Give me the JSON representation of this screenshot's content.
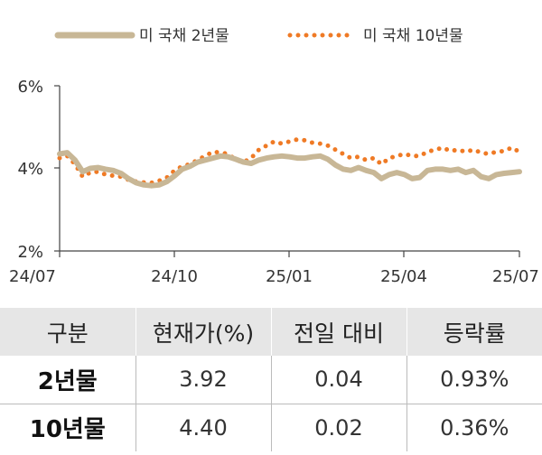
{
  "chart_data": {
    "type": "line",
    "xlabel": "",
    "ylabel": "",
    "x_tick_labels": [
      "24/07",
      "24/10",
      "25/01",
      "25/04",
      "25/07"
    ],
    "y_tick_labels": [
      "2%",
      "4%",
      "6%"
    ],
    "ylim": [
      2,
      6
    ],
    "grid": false,
    "legend_position": "top",
    "series": [
      {
        "name": "미 국채 2년물",
        "style": "solid-thick",
        "color": "#c8b796",
        "values": [
          4.35,
          4.38,
          4.2,
          3.92,
          4.0,
          4.02,
          3.98,
          3.95,
          3.88,
          3.75,
          3.65,
          3.6,
          3.58,
          3.6,
          3.68,
          3.82,
          3.98,
          4.05,
          4.15,
          4.2,
          4.25,
          4.3,
          4.28,
          4.22,
          4.15,
          4.12,
          4.2,
          4.25,
          4.28,
          4.3,
          4.28,
          4.25,
          4.25,
          4.28,
          4.3,
          4.22,
          4.08,
          3.98,
          3.95,
          4.02,
          3.95,
          3.9,
          3.75,
          3.85,
          3.9,
          3.85,
          3.75,
          3.78,
          3.95,
          3.98,
          3.98,
          3.95,
          3.98,
          3.9,
          3.95,
          3.8,
          3.75,
          3.85,
          3.88,
          3.9,
          3.92
        ]
      },
      {
        "name": "미 국채 10년물",
        "style": "dotted",
        "color": "#ef7a25",
        "values": [
          4.25,
          4.3,
          4.1,
          3.8,
          3.9,
          3.92,
          3.85,
          3.82,
          3.8,
          3.72,
          3.68,
          3.66,
          3.65,
          3.7,
          3.78,
          3.95,
          4.05,
          4.1,
          4.2,
          4.3,
          4.4,
          4.38,
          4.35,
          4.2,
          4.15,
          4.25,
          4.45,
          4.55,
          4.65,
          4.6,
          4.65,
          4.7,
          4.68,
          4.62,
          4.6,
          4.55,
          4.45,
          4.35,
          4.25,
          4.28,
          4.2,
          4.25,
          4.1,
          4.25,
          4.3,
          4.35,
          4.3,
          4.3,
          4.4,
          4.45,
          4.5,
          4.42,
          4.45,
          4.4,
          4.45,
          4.38,
          4.35,
          4.4,
          4.42,
          4.5,
          4.4
        ]
      }
    ]
  },
  "table": {
    "headers": [
      "구분",
      "현재가(%)",
      "전일 대비",
      "등락률"
    ],
    "rows": [
      [
        "2년물",
        "3.92",
        "0.04",
        "0.93%"
      ],
      [
        "10년물",
        "4.40",
        "0.02",
        "0.36%"
      ]
    ]
  }
}
